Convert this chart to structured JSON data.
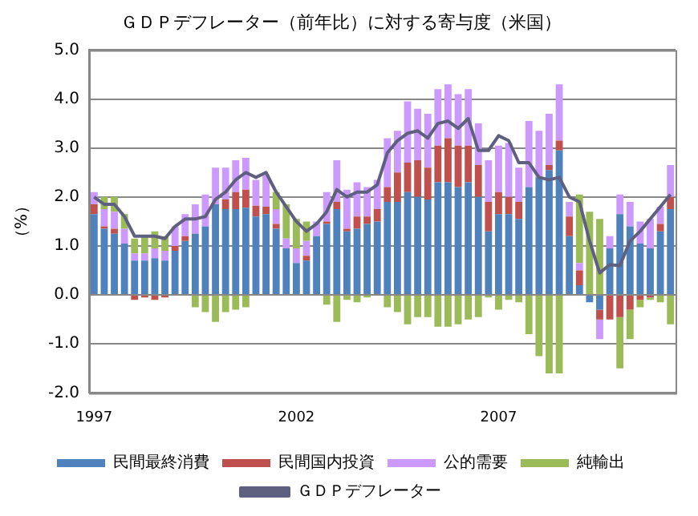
{
  "chart_data": {
    "type": "bar",
    "title": "ＧＤＰデフレーター（前年比）に対する寄与度（米国）",
    "ylabel": "（%）",
    "categories": [
      "1997",
      null,
      null,
      null,
      null,
      null,
      null,
      null,
      null,
      null,
      null,
      null,
      null,
      null,
      null,
      null,
      null,
      null,
      null,
      null,
      "2002",
      null,
      null,
      null,
      null,
      null,
      null,
      null,
      null,
      null,
      null,
      null,
      null,
      null,
      null,
      null,
      null,
      null,
      null,
      null,
      "2007",
      null,
      null,
      null,
      null,
      null,
      null,
      null,
      null,
      null,
      null,
      null,
      null,
      null,
      null,
      null,
      null,
      null
    ],
    "stacked": true,
    "series": [
      {
        "name": "民間最終消費",
        "color": "#4f81bd",
        "values": [
          1.65,
          1.35,
          1.25,
          1.05,
          0.7,
          0.7,
          0.75,
          0.7,
          0.9,
          1.1,
          1.25,
          1.4,
          1.85,
          1.75,
          1.75,
          1.78,
          1.6,
          1.65,
          1.35,
          0.95,
          0.65,
          0.7,
          1.2,
          1.45,
          1.75,
          1.3,
          1.35,
          1.45,
          1.5,
          1.9,
          1.9,
          2.1,
          2.0,
          1.95,
          2.3,
          2.3,
          2.2,
          2.3,
          2.0,
          1.3,
          1.65,
          1.65,
          1.55,
          2.2,
          2.4,
          2.55,
          2.95,
          1.2,
          0.2,
          -0.15,
          -0.3,
          0.95,
          1.65,
          1.4,
          1.05,
          0.95,
          1.3,
          1.75
        ]
      },
      {
        "name": "民間国内投資",
        "color": "#c0504d",
        "values": [
          0.2,
          0.05,
          0.1,
          0,
          -0.1,
          -0.05,
          -0.1,
          -0.05,
          0.1,
          0.1,
          0,
          0,
          0,
          0.2,
          0.35,
          0.37,
          0.22,
          0.15,
          0.1,
          0,
          0,
          0.1,
          0,
          0.05,
          0.15,
          0.05,
          0.25,
          0.15,
          0.25,
          0.3,
          0.6,
          0.6,
          0.75,
          0.65,
          0.75,
          0.9,
          0.85,
          0.75,
          0.65,
          0.6,
          0.45,
          0.35,
          0.35,
          0,
          0,
          0.1,
          0.2,
          0.4,
          0.3,
          0,
          -0.2,
          -0.5,
          -0.45,
          -0.3,
          -0.1,
          -0.05,
          0.15,
          0.25
        ]
      },
      {
        "name": "公的需要",
        "color": "#cc99ff",
        "values": [
          0.25,
          0.35,
          0.35,
          0.3,
          0.15,
          0.15,
          0.2,
          0.2,
          0.4,
          0.45,
          0.6,
          0.65,
          0.75,
          0.65,
          0.65,
          0.65,
          0.53,
          0.65,
          0.3,
          0.2,
          0.3,
          0.3,
          0.3,
          0.6,
          0.85,
          0.8,
          0.7,
          0.6,
          0.6,
          1.0,
          0.85,
          1.25,
          1.05,
          1.1,
          1.15,
          1.1,
          1.05,
          1.15,
          0.85,
          0.85,
          0.95,
          1.1,
          0.7,
          1.35,
          0.95,
          1.05,
          1.15,
          0.3,
          0.15,
          0,
          -0.4,
          0.25,
          0.4,
          0.5,
          0.45,
          0.6,
          0.35,
          0.65
        ]
      },
      {
        "name": "純輸出",
        "color": "#9bbb59",
        "values": [
          0,
          0.25,
          0.3,
          0.3,
          0.3,
          0.35,
          0.35,
          0.3,
          0,
          0,
          -0.25,
          -0.35,
          -0.55,
          -0.35,
          -0.3,
          -0.25,
          0,
          null,
          0.35,
          0.7,
          0.6,
          0.4,
          0,
          -0.2,
          -0.55,
          -0.1,
          -0.15,
          -0.05,
          0,
          -0.25,
          -0.35,
          -0.6,
          -0.45,
          -0.45,
          -0.65,
          -0.65,
          -0.6,
          -0.5,
          -0.45,
          -0.05,
          -0.3,
          -0.1,
          -0.15,
          -0.8,
          -1.25,
          -1.6,
          -1.6,
          0,
          1.4,
          1.7,
          1.55,
          0,
          -1.05,
          -0.6,
          -0.15,
          -0.05,
          -0.15,
          -0.6
        ]
      },
      {
        "name": "ＧＤＰデフレーター",
        "type": "line",
        "color": "#5f5f80",
        "values": [
          2.0,
          1.85,
          1.85,
          1.6,
          1.2,
          1.2,
          1.2,
          1.15,
          1.4,
          1.55,
          1.55,
          1.6,
          1.95,
          2.1,
          2.35,
          2.5,
          2.4,
          2.5,
          2.1,
          1.8,
          1.5,
          1.3,
          1.45,
          1.7,
          2.15,
          2.0,
          2.1,
          2.1,
          2.25,
          2.9,
          3.15,
          3.3,
          3.35,
          3.2,
          3.5,
          3.55,
          3.4,
          3.6,
          2.95,
          2.95,
          3.25,
          3.15,
          2.7,
          2.7,
          2.4,
          2.35,
          2.4,
          2.0,
          1.9,
          1.1,
          0.45,
          0.62,
          0.6,
          1.1,
          1.3,
          1.55,
          1.8,
          2.05
        ]
      }
    ],
    "ylim": [
      -2,
      5
    ],
    "yticks": [
      {
        "value": -2,
        "label": "-2.0"
      },
      {
        "value": -1,
        "label": "-1.0"
      },
      {
        "value": 0,
        "label": "0.0"
      },
      {
        "value": 1,
        "label": "1.0"
      },
      {
        "value": 2,
        "label": "2.0"
      },
      {
        "value": 3,
        "label": "3.0"
      },
      {
        "value": 4,
        "label": "4.0"
      },
      {
        "value": 5,
        "label": "5.0"
      }
    ],
    "grid": "y",
    "legend": "bottom",
    "marker": "none",
    "line_style": "solid"
  }
}
